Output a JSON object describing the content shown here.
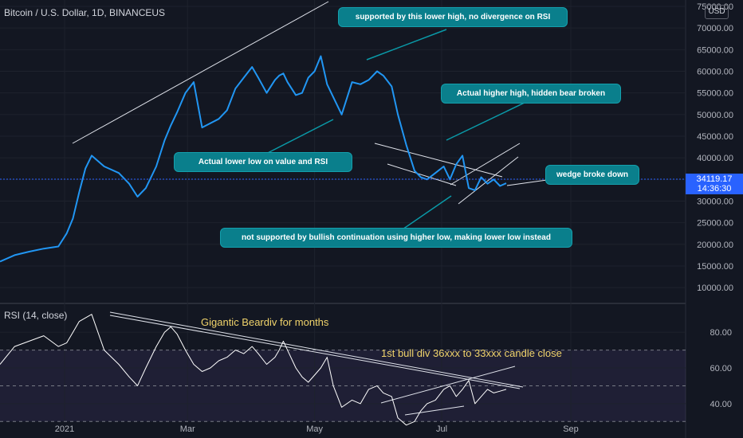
{
  "header": {
    "price_title": "Bitcoin / U.S. Dollar, 1D, BINANCEUS",
    "rsi_title": "RSI (14, close)",
    "currency": "USD",
    "last_price": "34119.17",
    "countdown": "14:36:30"
  },
  "annotations": {
    "lower_high": "supported by this lower high, no divergence on RSI",
    "higher_high": "Actual higher high, hidden bear broken",
    "lower_low": "Actual lower low on value and RSI",
    "wedge": "wedge broke down",
    "not_supported": "not supported by bullish continuation using higher low, making lower low instead",
    "beardiv": "Gigantic Beardiv for months",
    "bull_div": "1st bull div 36xxx to 33xxx candle close"
  },
  "colors": {
    "background": "#131722",
    "price_line": "#2196f3",
    "rsi_line": "#ffffff",
    "rsi_band": "#7e57c2",
    "annotation_fill": "#0a7f8c",
    "annotation_text_gold": "#f0d36b"
  },
  "chart_data": [
    {
      "type": "line",
      "series": [
        {
          "values": [
            16000,
            17500,
            18300,
            19000,
            19500,
            22500,
            26000,
            32000,
            37500,
            40500,
            38000,
            36500,
            34000,
            31000,
            33000,
            38000,
            44000,
            47500,
            50500,
            55000,
            57500,
            47000,
            48000,
            49000,
            51000,
            56000,
            58500,
            61000,
            58500,
            55000,
            58000,
            59000,
            59500,
            57500,
            54500,
            55000,
            58500,
            60000,
            63500,
            57000,
            54000,
            50000,
            57500,
            57000,
            58000,
            60000,
            59000,
            56500,
            50000,
            43000,
            37000,
            35500,
            35000,
            36500,
            38000,
            35000,
            38500,
            40500,
            33000,
            32500,
            35500,
            34000,
            35000,
            33500,
            34119.17
          ]
        }
      ],
      "x": [
        "2020-12-01",
        "2020-12-08",
        "2020-12-15",
        "2020-12-22",
        "2020-12-29",
        "2021-01-02",
        "2021-01-05",
        "2021-01-08",
        "2021-01-11",
        "2021-01-14",
        "2021-01-20",
        "2021-01-27",
        "2021-02-01",
        "2021-02-05",
        "2021-02-09",
        "2021-02-14",
        "2021-02-18",
        "2021-02-21",
        "2021-02-24",
        "2021-02-28",
        "2021-03-04",
        "2021-03-08",
        "2021-03-12",
        "2021-03-16",
        "2021-03-20",
        "2021-03-24",
        "2021-03-28",
        "2021-04-01",
        "2021-04-04",
        "2021-04-08",
        "2021-04-12",
        "2021-04-14",
        "2021-04-16",
        "2021-04-18",
        "2021-04-22",
        "2021-04-25",
        "2021-04-28",
        "2021-05-01",
        "2021-05-04",
        "2021-05-07",
        "2021-05-10",
        "2021-05-14",
        "2021-05-19",
        "2021-05-23",
        "2021-05-27",
        "2021-05-31",
        "2021-06-03",
        "2021-06-07",
        "2021-06-10",
        "2021-06-14",
        "2021-06-18",
        "2021-06-21",
        "2021-06-24",
        "2021-06-28",
        "2021-07-02",
        "2021-07-05",
        "2021-07-08",
        "2021-07-11",
        "2021-07-14",
        "2021-07-17",
        "2021-07-20",
        "2021-07-23",
        "2021-07-26",
        "2021-07-29",
        "2021-08-01"
      ],
      "y_ticks": [
        "10000.00",
        "15000.00",
        "20000.00",
        "25000.00",
        "30000.00",
        "35000.00",
        "40000.00",
        "45000.00",
        "50000.00",
        "55000.00",
        "60000.00",
        "65000.00",
        "70000.00",
        "75000.00"
      ],
      "ylim": [
        8000,
        75000
      ],
      "x_ticks": [
        "2021",
        "Mar",
        "May",
        "Jul",
        "Sep"
      ],
      "grid": true
    },
    {
      "type": "line",
      "series": [
        {
          "values": [
            62,
            72,
            75,
            78,
            72,
            74,
            80,
            86,
            88,
            90,
            70,
            62,
            55,
            50,
            60,
            72,
            80,
            83,
            79,
            70,
            62,
            58,
            60,
            64,
            66,
            70,
            68,
            72,
            68,
            62,
            66,
            70,
            75,
            70,
            60,
            55,
            52,
            56,
            60,
            66,
            50,
            38,
            42,
            40,
            48,
            50,
            46,
            44,
            32,
            28,
            30,
            36,
            40,
            42,
            48,
            50,
            44,
            48,
            53,
            40,
            44,
            48,
            46,
            47,
            48
          ]
        }
      ],
      "x": [
        "2020-12-01",
        "2020-12-08",
        "2020-12-15",
        "2020-12-22",
        "2020-12-29",
        "2021-01-02",
        "2021-01-05",
        "2021-01-08",
        "2021-01-11",
        "2021-01-14",
        "2021-01-20",
        "2021-01-27",
        "2021-02-01",
        "2021-02-05",
        "2021-02-09",
        "2021-02-14",
        "2021-02-18",
        "2021-02-21",
        "2021-02-24",
        "2021-02-28",
        "2021-03-04",
        "2021-03-08",
        "2021-03-12",
        "2021-03-16",
        "2021-03-20",
        "2021-03-24",
        "2021-03-28",
        "2021-04-01",
        "2021-04-04",
        "2021-04-08",
        "2021-04-12",
        "2021-04-14",
        "2021-04-16",
        "2021-04-18",
        "2021-04-22",
        "2021-04-25",
        "2021-04-28",
        "2021-05-01",
        "2021-05-04",
        "2021-05-07",
        "2021-05-10",
        "2021-05-14",
        "2021-05-19",
        "2021-05-23",
        "2021-05-27",
        "2021-05-31",
        "2021-06-03",
        "2021-06-07",
        "2021-06-10",
        "2021-06-14",
        "2021-06-18",
        "2021-06-21",
        "2021-06-24",
        "2021-06-28",
        "2021-07-02",
        "2021-07-05",
        "2021-07-08",
        "2021-07-11",
        "2021-07-14",
        "2021-07-17",
        "2021-07-20",
        "2021-07-23",
        "2021-07-26",
        "2021-07-29",
        "2021-08-01"
      ],
      "y_ticks": [
        "40.00",
        "60.00",
        "80.00"
      ],
      "ylim": [
        23,
        93
      ],
      "levels": [
        30,
        50,
        70
      ],
      "grid": true
    }
  ]
}
